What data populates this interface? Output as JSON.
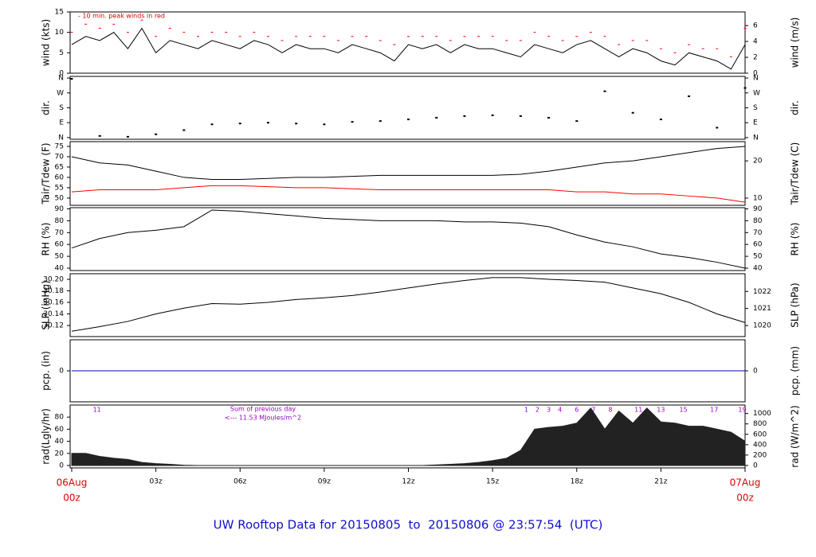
{
  "chart_data": [
    {
      "type": "line",
      "ylabel": "wind (kts)",
      "y2label": "wind (m/s)",
      "note": "- 10 min. peak winds in red",
      "xlim": [
        0,
        24
      ],
      "ylim": [
        0,
        15
      ],
      "yticks": [
        0,
        5,
        10,
        15
      ],
      "y2lim": [
        0,
        7.72
      ],
      "y2ticks": [
        0,
        2,
        4,
        6
      ],
      "x": [
        0,
        0.5,
        1,
        1.5,
        2,
        2.5,
        3,
        3.5,
        4,
        4.5,
        5,
        5.5,
        6,
        6.5,
        7,
        7.5,
        8,
        8.5,
        9,
        9.5,
        10,
        10.5,
        11,
        11.5,
        12,
        12.5,
        13,
        13.5,
        14,
        14.5,
        15,
        15.5,
        16,
        16.5,
        17,
        17.5,
        18,
        18.5,
        19,
        19.5,
        20,
        20.5,
        21,
        21.5,
        22,
        22.5,
        23,
        23.5,
        24
      ],
      "series": [
        {
          "color": "#000000",
          "style": "line",
          "values": [
            7,
            9,
            8,
            10,
            6,
            11,
            5,
            8,
            7,
            6,
            8,
            7,
            6,
            8,
            7,
            5,
            7,
            6,
            6,
            5,
            7,
            6,
            5,
            3,
            7,
            6,
            7,
            5,
            7,
            6,
            6,
            5,
            4,
            7,
            6,
            5,
            7,
            8,
            6,
            4,
            6,
            5,
            3,
            2,
            5,
            4,
            3,
            1,
            7
          ]
        },
        {
          "color": "#ff0000",
          "style": "dash",
          "values": [
            10,
            12,
            11,
            12,
            10,
            13,
            9,
            11,
            10,
            9,
            10,
            10,
            9,
            10,
            9,
            8,
            9,
            9,
            9,
            8,
            9,
            9,
            8,
            7,
            9,
            9,
            9,
            8,
            9,
            9,
            9,
            8,
            8,
            10,
            9,
            8,
            9,
            10,
            9,
            7,
            8,
            8,
            6,
            5,
            7,
            6,
            6,
            4,
            11
          ]
        }
      ]
    },
    {
      "type": "scatter",
      "ylabel": "dir.",
      "y2label": "dir.",
      "xlim": [
        0,
        24
      ],
      "ylim": [
        -10,
        370
      ],
      "yticks": [
        {
          "value": 0,
          "label": "N"
        },
        {
          "value": 90,
          "label": "E"
        },
        {
          "value": 180,
          "label": "S"
        },
        {
          "value": 270,
          "label": "W"
        },
        {
          "value": 360,
          "label": "N"
        }
      ],
      "y2lim": [
        -10,
        370
      ],
      "y2ticks": [
        {
          "value": 0,
          "label": "N"
        },
        {
          "value": 90,
          "label": "E"
        },
        {
          "value": 180,
          "label": "S"
        },
        {
          "value": 270,
          "label": "W"
        },
        {
          "value": 360,
          "label": "N"
        }
      ],
      "x": [
        0,
        1,
        2,
        3,
        4,
        5,
        6,
        7,
        8,
        9,
        10,
        11,
        12,
        13,
        14,
        15,
        16,
        17,
        18,
        19,
        20,
        21,
        22,
        23,
        24
      ],
      "series": [
        {
          "color": "#000000",
          "values": [
            355,
            10,
            5,
            20,
            45,
            80,
            85,
            90,
            85,
            80,
            95,
            100,
            110,
            120,
            130,
            135,
            130,
            120,
            100,
            280,
            150,
            110,
            250,
            60,
            300
          ]
        }
      ]
    },
    {
      "type": "line",
      "ylabel": "Tair/Tdew (F)",
      "y2label": "Tair/Tdew (C)",
      "xlim": [
        0,
        24
      ],
      "ylim": [
        46.5,
        77.3
      ],
      "yticks": [
        50,
        55,
        60,
        65,
        70,
        75
      ],
      "y2lim": [
        8.06,
        25.17
      ],
      "y2ticks": [
        10,
        20
      ],
      "x": [
        0,
        1,
        2,
        3,
        4,
        5,
        6,
        7,
        8,
        9,
        10,
        11,
        12,
        13,
        14,
        15,
        16,
        17,
        18,
        19,
        20,
        21,
        22,
        23,
        24
      ],
      "series": [
        {
          "color": "#000000",
          "style": "line",
          "values": [
            70,
            67,
            66,
            63,
            60,
            59,
            59,
            59.5,
            60,
            60,
            60.5,
            61,
            61,
            61,
            61,
            61,
            61.5,
            63,
            65,
            67,
            68,
            70,
            72,
            74,
            75
          ]
        },
        {
          "color": "#ff0000",
          "style": "line",
          "values": [
            53,
            54,
            54,
            54,
            55,
            56,
            56,
            55.5,
            55,
            55,
            54.5,
            54,
            54,
            54,
            54,
            54,
            54,
            54,
            53,
            53,
            52,
            52,
            51,
            50,
            48
          ]
        }
      ]
    },
    {
      "type": "line",
      "ylabel": "RH (%)",
      "y2label": "RH (%)",
      "xlim": [
        0,
        24
      ],
      "ylim": [
        38,
        91
      ],
      "yticks": [
        40,
        50,
        60,
        70,
        80,
        90
      ],
      "y2lim": [
        38,
        91
      ],
      "y2ticks": [
        40,
        50,
        60,
        70,
        80,
        90
      ],
      "x": [
        0,
        1,
        2,
        3,
        4,
        5,
        6,
        7,
        8,
        9,
        10,
        11,
        12,
        13,
        14,
        15,
        16,
        17,
        18,
        19,
        20,
        21,
        22,
        23,
        24
      ],
      "series": [
        {
          "color": "#000000",
          "style": "line",
          "values": [
            57,
            65,
            70,
            72,
            75,
            89,
            88,
            86,
            84,
            82,
            81,
            80,
            80,
            80,
            79,
            79,
            78,
            75,
            68,
            62,
            58,
            52,
            49,
            45,
            40
          ]
        }
      ]
    },
    {
      "type": "line",
      "ylabel": "SLP (inHg)",
      "y2label": "SLP (hPa)",
      "xlim": [
        0,
        24
      ],
      "ylim": [
        30.1007,
        30.2097
      ],
      "yticks": [
        {
          "value": 30.12,
          "label": "30.12"
        },
        30.14,
        30.16,
        30.18,
        {
          "value": 30.2,
          "label": "30.20"
        }
      ],
      "y2lim": [
        1019.35,
        1023.04
      ],
      "y2ticks": [
        1020,
        1021,
        1022
      ],
      "x": [
        0,
        1,
        2,
        3,
        4,
        5,
        6,
        7,
        8,
        9,
        10,
        11,
        12,
        13,
        14,
        15,
        16,
        17,
        18,
        19,
        20,
        21,
        22,
        23,
        24
      ],
      "series": [
        {
          "color": "#000000",
          "style": "line",
          "values": [
            30.11,
            30.118,
            30.127,
            30.14,
            30.15,
            30.158,
            30.157,
            30.16,
            30.165,
            30.168,
            30.172,
            30.178,
            30.185,
            30.192,
            30.198,
            30.203,
            30.203,
            30.2,
            30.198,
            30.195,
            30.185,
            30.175,
            30.16,
            30.14,
            30.125
          ]
        }
      ]
    },
    {
      "type": "line",
      "ylabel": "pcp. (in)",
      "y2label": "pcp. (mm)",
      "xlim": [
        0,
        24
      ],
      "ylim": [
        -1,
        1
      ],
      "yticks": [
        0
      ],
      "y2lim": [
        -1,
        1
      ],
      "y2ticks": [
        0
      ],
      "x": [
        0,
        1,
        2,
        3,
        4,
        5,
        6,
        7,
        8,
        9,
        10,
        11,
        12,
        13,
        14,
        15,
        16,
        17,
        18,
        19,
        20,
        21,
        22,
        23,
        24
      ],
      "series": [
        {
          "color": "#0000cc",
          "style": "line",
          "values": [
            0,
            0,
            0,
            0,
            0,
            0,
            0,
            0,
            0,
            0,
            0,
            0,
            0,
            0,
            0,
            0,
            0,
            0,
            0,
            0,
            0,
            0,
            0,
            0,
            0
          ]
        }
      ]
    },
    {
      "type": "area",
      "ylabel": "rad(Lgly/hr)",
      "y2label": "rad (W/m^2)",
      "summary": [
        "Sum of previous day",
        "<--- 11.53 MJoules/m^2"
      ],
      "annotations": [
        {
          "x": 0.9,
          "text": "11"
        },
        {
          "x": 16.2,
          "text": "1"
        },
        {
          "x": 16.6,
          "text": "2"
        },
        {
          "x": 17.0,
          "text": "3"
        },
        {
          "x": 17.4,
          "text": "4"
        },
        {
          "x": 18.0,
          "text": "6"
        },
        {
          "x": 18.6,
          "text": "7"
        },
        {
          "x": 19.2,
          "text": "8"
        },
        {
          "x": 20.2,
          "text": "11"
        },
        {
          "x": 21.0,
          "text": "13"
        },
        {
          "x": 21.8,
          "text": "15"
        },
        {
          "x": 22.9,
          "text": "17"
        },
        {
          "x": 23.9,
          "text": "19"
        }
      ],
      "xlim": [
        0,
        24
      ],
      "ylim": [
        -4,
        100
      ],
      "yticks": [
        0,
        20,
        40,
        60,
        80
      ],
      "y2lim": [
        -46.5,
        1163
      ],
      "y2ticks": [
        0,
        200,
        400,
        600,
        800,
        1000
      ],
      "xticks": [
        {
          "value": 0,
          "label": "00z"
        },
        {
          "value": 3,
          "label": "03z"
        },
        {
          "value": 6,
          "label": "06z"
        },
        {
          "value": 9,
          "label": "09z"
        },
        {
          "value": 12,
          "label": "12z"
        },
        {
          "value": 15,
          "label": "15z"
        },
        {
          "value": 18,
          "label": "18z"
        },
        {
          "value": 21,
          "label": "21z"
        },
        {
          "value": 24,
          "label": "00z"
        }
      ],
      "start_date": "06Aug",
      "end_date": "07Aug",
      "x": [
        0,
        0.5,
        1,
        1.5,
        2,
        2.5,
        3,
        3.5,
        4,
        4.5,
        5,
        5.5,
        6,
        6.5,
        7,
        7.5,
        8,
        8.5,
        9,
        9.5,
        10,
        10.5,
        11,
        11.5,
        12,
        12.5,
        13,
        13.5,
        14,
        14.5,
        15,
        15.5,
        16,
        16.5,
        17,
        17.5,
        18,
        18.5,
        19,
        19.5,
        20,
        20.5,
        21,
        21.5,
        22,
        22.5,
        23,
        23.5,
        24
      ],
      "series": [
        {
          "color": "#222222",
          "values": [
            20,
            20,
            15,
            12,
            10,
            5,
            3,
            2,
            0.5,
            0,
            0,
            0,
            0,
            0,
            0,
            0,
            0,
            0,
            0,
            0,
            0,
            0,
            0,
            0,
            0,
            0,
            1,
            2,
            3,
            5,
            8,
            12,
            25,
            60,
            63,
            65,
            70,
            95,
            60,
            90,
            70,
            95,
            72,
            70,
            65,
            65,
            60,
            55,
            40
          ]
        }
      ]
    }
  ],
  "footer": "UW Rooftop Data for 20150805  to  20150806 @ 23:57:54  (UTC)"
}
